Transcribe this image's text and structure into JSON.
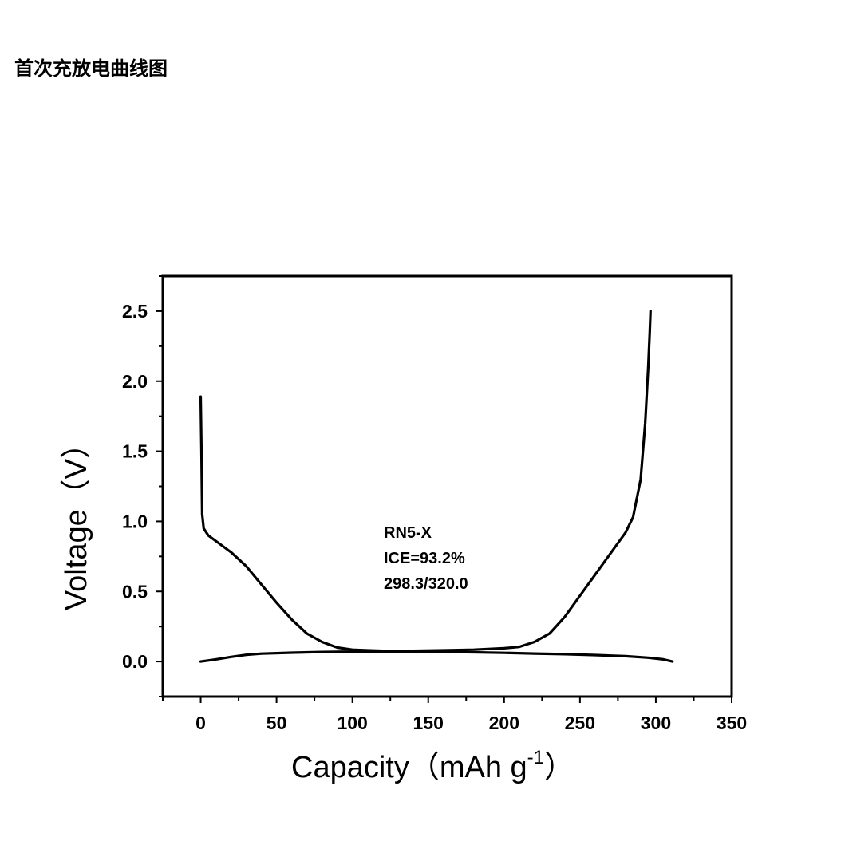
{
  "page": {
    "heading": "首次充放电曲线图"
  },
  "chart_data": {
    "type": "line",
    "title": "",
    "xlabel": "Capacity（mAh g",
    "xlabel_superscript": "-1",
    "xlabel_suffix": "）",
    "ylabel": "Voltage（V）",
    "xlim": [
      -25,
      350
    ],
    "ylim": [
      -0.25,
      2.75
    ],
    "xticks": [
      0,
      50,
      100,
      150,
      200,
      250,
      300,
      350
    ],
    "xtick_labels": [
      "0",
      "50",
      "100",
      "150",
      "200",
      "250",
      "300",
      "350"
    ],
    "yticks": [
      0.0,
      0.5,
      1.0,
      1.5,
      2.0,
      2.5
    ],
    "ytick_labels": [
      "0.0",
      "0.5",
      "1.0",
      "1.5",
      "2.0",
      "2.5"
    ],
    "grid": false,
    "line_color": "#000000",
    "annotations": [
      "RN5-X",
      "ICE=93.2%",
      "298.3/320.0"
    ],
    "series": [
      {
        "points": [
          [
            0,
            1.89
          ],
          [
            0.5,
            1.5
          ],
          [
            1,
            1.05
          ],
          [
            2,
            0.95
          ],
          [
            5,
            0.9
          ],
          [
            10,
            0.86
          ],
          [
            20,
            0.78
          ],
          [
            30,
            0.68
          ],
          [
            40,
            0.55
          ],
          [
            50,
            0.42
          ],
          [
            60,
            0.3
          ],
          [
            70,
            0.2
          ],
          [
            80,
            0.14
          ],
          [
            90,
            0.1
          ],
          [
            100,
            0.085
          ],
          [
            110,
            0.08
          ],
          [
            120,
            0.077
          ],
          [
            140,
            0.077
          ],
          [
            160,
            0.08
          ],
          [
            180,
            0.085
          ],
          [
            200,
            0.095
          ],
          [
            210,
            0.105
          ],
          [
            220,
            0.14
          ],
          [
            230,
            0.2
          ],
          [
            240,
            0.32
          ],
          [
            250,
            0.47
          ],
          [
            260,
            0.62
          ],
          [
            270,
            0.77
          ],
          [
            280,
            0.92
          ],
          [
            285,
            1.03
          ],
          [
            290,
            1.3
          ],
          [
            293,
            1.7
          ],
          [
            295,
            2.1
          ],
          [
            296,
            2.35
          ],
          [
            296.5,
            2.5
          ]
        ]
      },
      {
        "points": [
          [
            0,
            0.0
          ],
          [
            10,
            0.015
          ],
          [
            20,
            0.033
          ],
          [
            30,
            0.048
          ],
          [
            40,
            0.056
          ],
          [
            60,
            0.063
          ],
          [
            80,
            0.068
          ],
          [
            100,
            0.071
          ],
          [
            120,
            0.072
          ],
          [
            140,
            0.071
          ],
          [
            160,
            0.069
          ],
          [
            180,
            0.066
          ],
          [
            200,
            0.062
          ],
          [
            220,
            0.057
          ],
          [
            240,
            0.052
          ],
          [
            260,
            0.046
          ],
          [
            280,
            0.038
          ],
          [
            295,
            0.027
          ],
          [
            305,
            0.015
          ],
          [
            311,
            0.0
          ]
        ]
      }
    ]
  }
}
